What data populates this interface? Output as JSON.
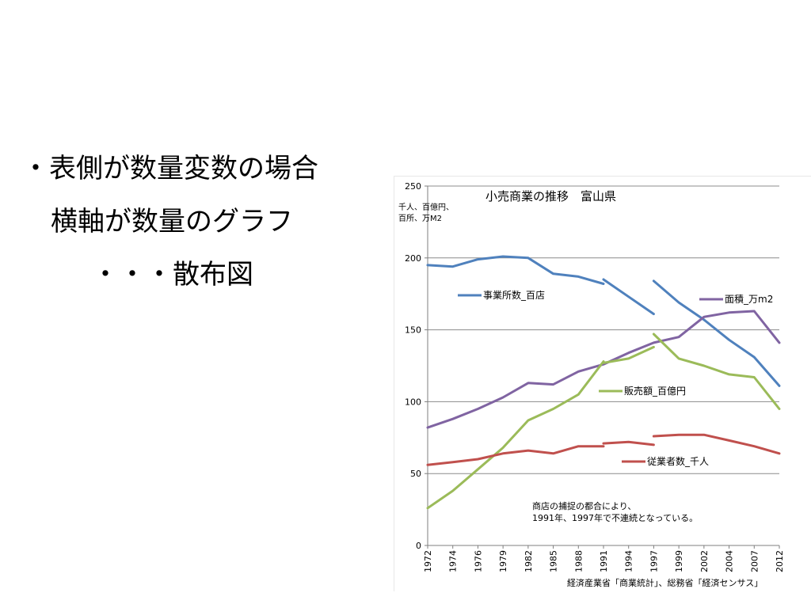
{
  "slide": {
    "line1": "・表側が数量変数の場合",
    "line2": "横軸が数量のグラフ",
    "line3": "・・・散布図"
  },
  "chart_data": {
    "type": "line",
    "title": "小売商業の推移　富山県",
    "ylabel_lines": [
      "千人、百億円、",
      "百所、万M2"
    ],
    "ylim": [
      0,
      250
    ],
    "yticks": [
      0,
      50,
      100,
      150,
      200,
      250
    ],
    "grid": true,
    "categories": [
      "1972",
      "1974",
      "1976",
      "1979",
      "1982",
      "1985",
      "1988",
      "1991",
      "1994",
      "1997",
      "1999",
      "2002",
      "2004",
      "2007",
      "2012"
    ],
    "series": [
      {
        "name": "事業所数_百店",
        "color": "#4F81BD",
        "segments": [
          {
            "x": [
              "1972",
              "1974",
              "1976",
              "1979",
              "1982",
              "1985",
              "1988",
              "1991"
            ],
            "values": [
              195,
              194,
              199,
              201,
              200,
              189,
              187,
              182
            ]
          },
          {
            "x": [
              "1991",
              "1994",
              "1997"
            ],
            "values": [
              185,
              173,
              161
            ]
          },
          {
            "x": [
              "1997",
              "1999",
              "2002",
              "2004",
              "2007",
              "2012"
            ],
            "values": [
              184,
              169,
              157,
              143,
              131,
              111
            ]
          }
        ]
      },
      {
        "name": "面積_万m2",
        "color": "#8064A2",
        "segments": [
          {
            "x": [
              "1972",
              "1974",
              "1976",
              "1979",
              "1982",
              "1985",
              "1988",
              "1991",
              "1994",
              "1997",
              "1999",
              "2002",
              "2004",
              "2007",
              "2012"
            ],
            "values": [
              82,
              88,
              95,
              103,
              113,
              112,
              121,
              126,
              134,
              141,
              145,
              159,
              162,
              163,
              141
            ]
          }
        ]
      },
      {
        "name": "販売額_百億円",
        "color": "#9BBB59",
        "segments": [
          {
            "x": [
              "1972",
              "1974",
              "1976",
              "1979",
              "1982",
              "1985",
              "1988",
              "1991"
            ],
            "values": [
              26,
              38,
              53,
              68,
              87,
              95,
              105,
              128
            ]
          },
          {
            "x": [
              "1991",
              "1994",
              "1997"
            ],
            "values": [
              127,
              130,
              138
            ]
          },
          {
            "x": [
              "1997",
              "1999",
              "2002",
              "2004",
              "2007",
              "2012"
            ],
            "values": [
              147,
              130,
              125,
              119,
              117,
              95
            ]
          }
        ]
      },
      {
        "name": "従業者数_千人",
        "color": "#C0504D",
        "segments": [
          {
            "x": [
              "1972",
              "1974",
              "1976",
              "1979",
              "1982",
              "1985",
              "1988",
              "1991"
            ],
            "values": [
              56,
              58,
              60,
              64,
              66,
              64,
              69,
              69
            ]
          },
          {
            "x": [
              "1991",
              "1994",
              "1997"
            ],
            "values": [
              71,
              72,
              70
            ]
          },
          {
            "x": [
              "1997",
              "1999",
              "2002",
              "2004",
              "2007",
              "2012"
            ],
            "values": [
              76,
              77,
              77,
              73,
              69,
              64
            ]
          }
        ]
      }
    ],
    "annotation_lines": [
      "商店の捕捉の都合により、",
      "1991年、1997年で不連続となっている。"
    ],
    "source": "経済産業省「商業統計」、総務省「経済センサス」"
  }
}
